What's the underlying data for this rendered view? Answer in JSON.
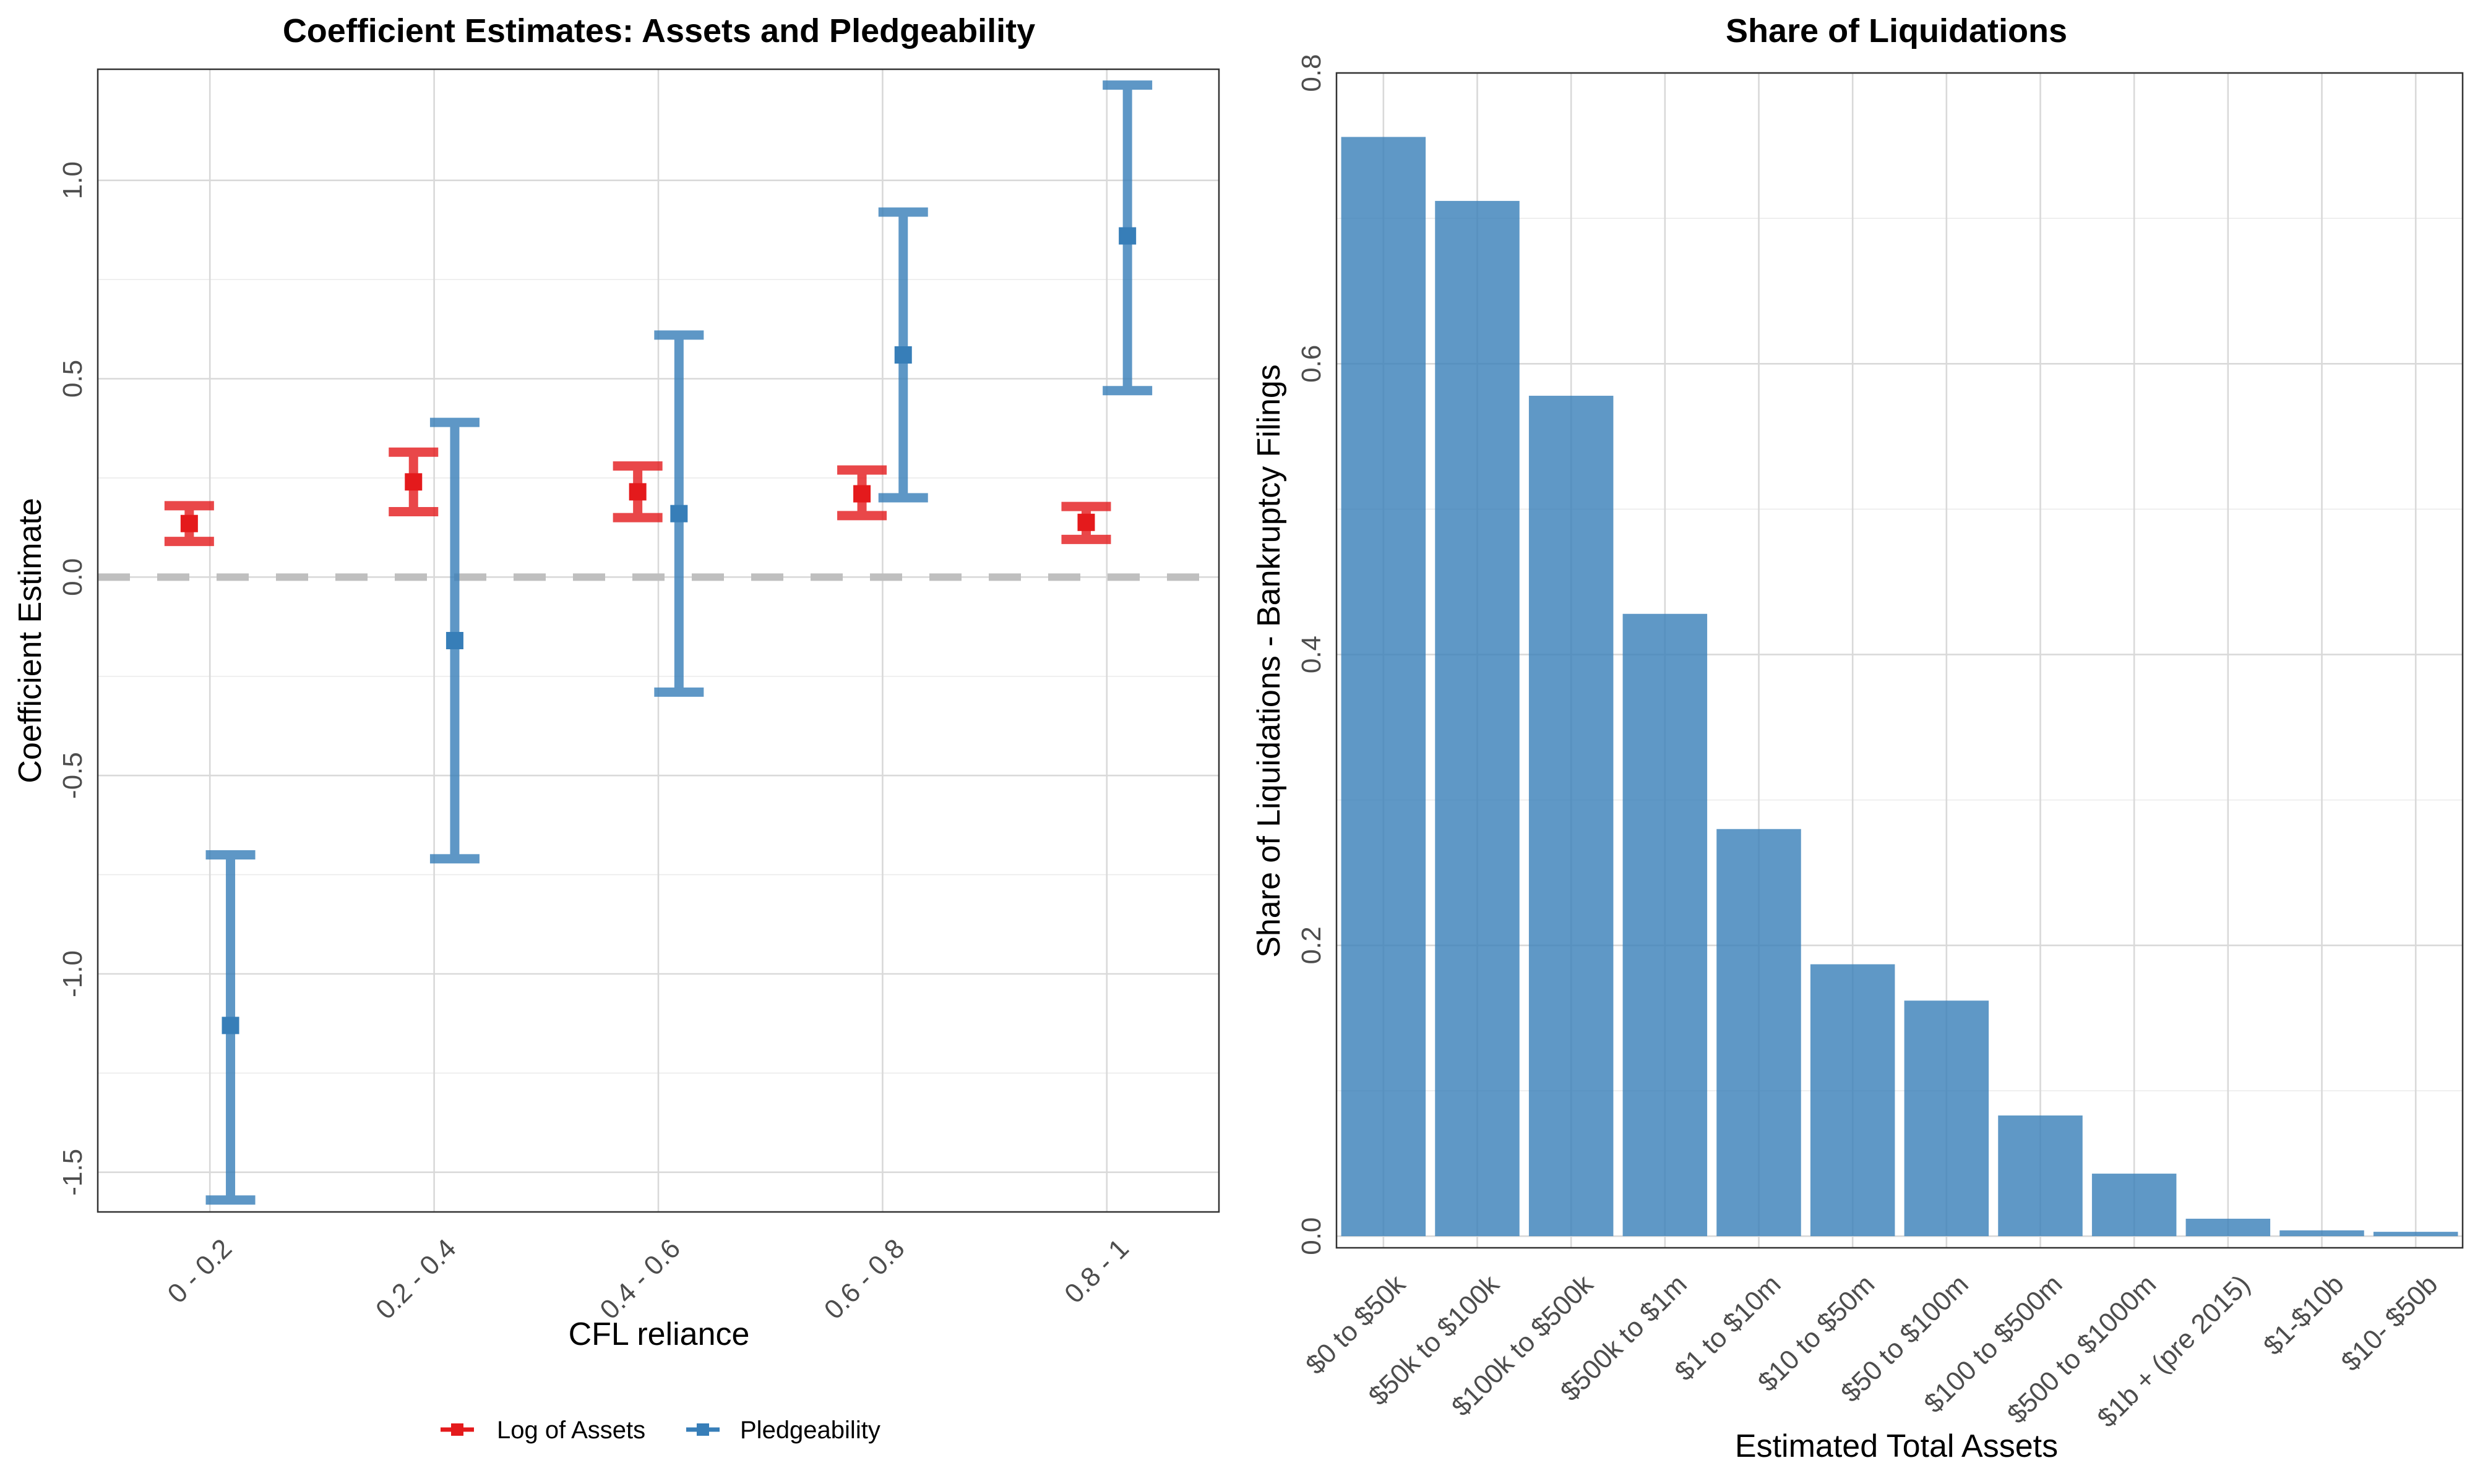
{
  "chart_data": [
    {
      "type": "errorbar",
      "title": "Coefficient Estimates: Assets and Pledgeability",
      "xlabel": "CFL reliance",
      "ylabel": "Coefficient Estimate",
      "categories": [
        "0 - 0.2",
        "0.2 - 0.4",
        "0.4 - 0.6",
        "0.6 - 0.8",
        "0.8 - 1"
      ],
      "ylim": [
        -1.6,
        1.28
      ],
      "yticks": [
        -1.5,
        -1.0,
        -0.5,
        0.0,
        0.5,
        1.0
      ],
      "ytick_labels": [
        "-1.5",
        "-1.0",
        "-0.5",
        "0.0",
        "0.5",
        "1.0"
      ],
      "reference_line": 0.0,
      "legend_position": "bottom",
      "series": [
        {
          "name": "Log of Assets",
          "color": "#e41a1c",
          "estimates": [
            0.135,
            0.24,
            0.215,
            0.21,
            0.138
          ],
          "lower": [
            0.09,
            0.165,
            0.15,
            0.155,
            0.095
          ],
          "upper": [
            0.18,
            0.315,
            0.28,
            0.27,
            0.178
          ]
        },
        {
          "name": "Pledgeability",
          "color": "#377eb8",
          "estimates": [
            -1.13,
            -0.16,
            0.16,
            0.56,
            0.86
          ],
          "lower": [
            -1.57,
            -0.71,
            -0.29,
            0.2,
            0.47
          ],
          "upper": [
            -0.7,
            0.39,
            0.61,
            0.92,
            1.24
          ]
        }
      ]
    },
    {
      "type": "bar",
      "title": "Share of Liquidations",
      "xlabel": "Estimated Total Assets",
      "ylabel": "Share of Liquidations - Bankruptcy Filings",
      "categories": [
        "$0 to $50k",
        "$50k to $100k",
        "$100k to $500k",
        "$500k to $1m",
        "$1 to $10m",
        "$10 to $50m",
        "$50 to $100m",
        "$100 to $500m",
        "$500 to $1000m",
        "$1b + (pre 2015)",
        "$1-$10b",
        "$10- $50b"
      ],
      "values": [
        0.756,
        0.712,
        0.578,
        0.428,
        0.28,
        0.187,
        0.162,
        0.083,
        0.043,
        0.012,
        0.004,
        0.003
      ],
      "ylim": [
        -0.008,
        0.8
      ],
      "yticks": [
        0.0,
        0.2,
        0.4,
        0.6,
        0.8
      ],
      "ytick_labels": [
        "0.0",
        "0.2",
        "0.4",
        "0.6",
        "0.8"
      ],
      "bar_color": "#377eb8"
    }
  ]
}
